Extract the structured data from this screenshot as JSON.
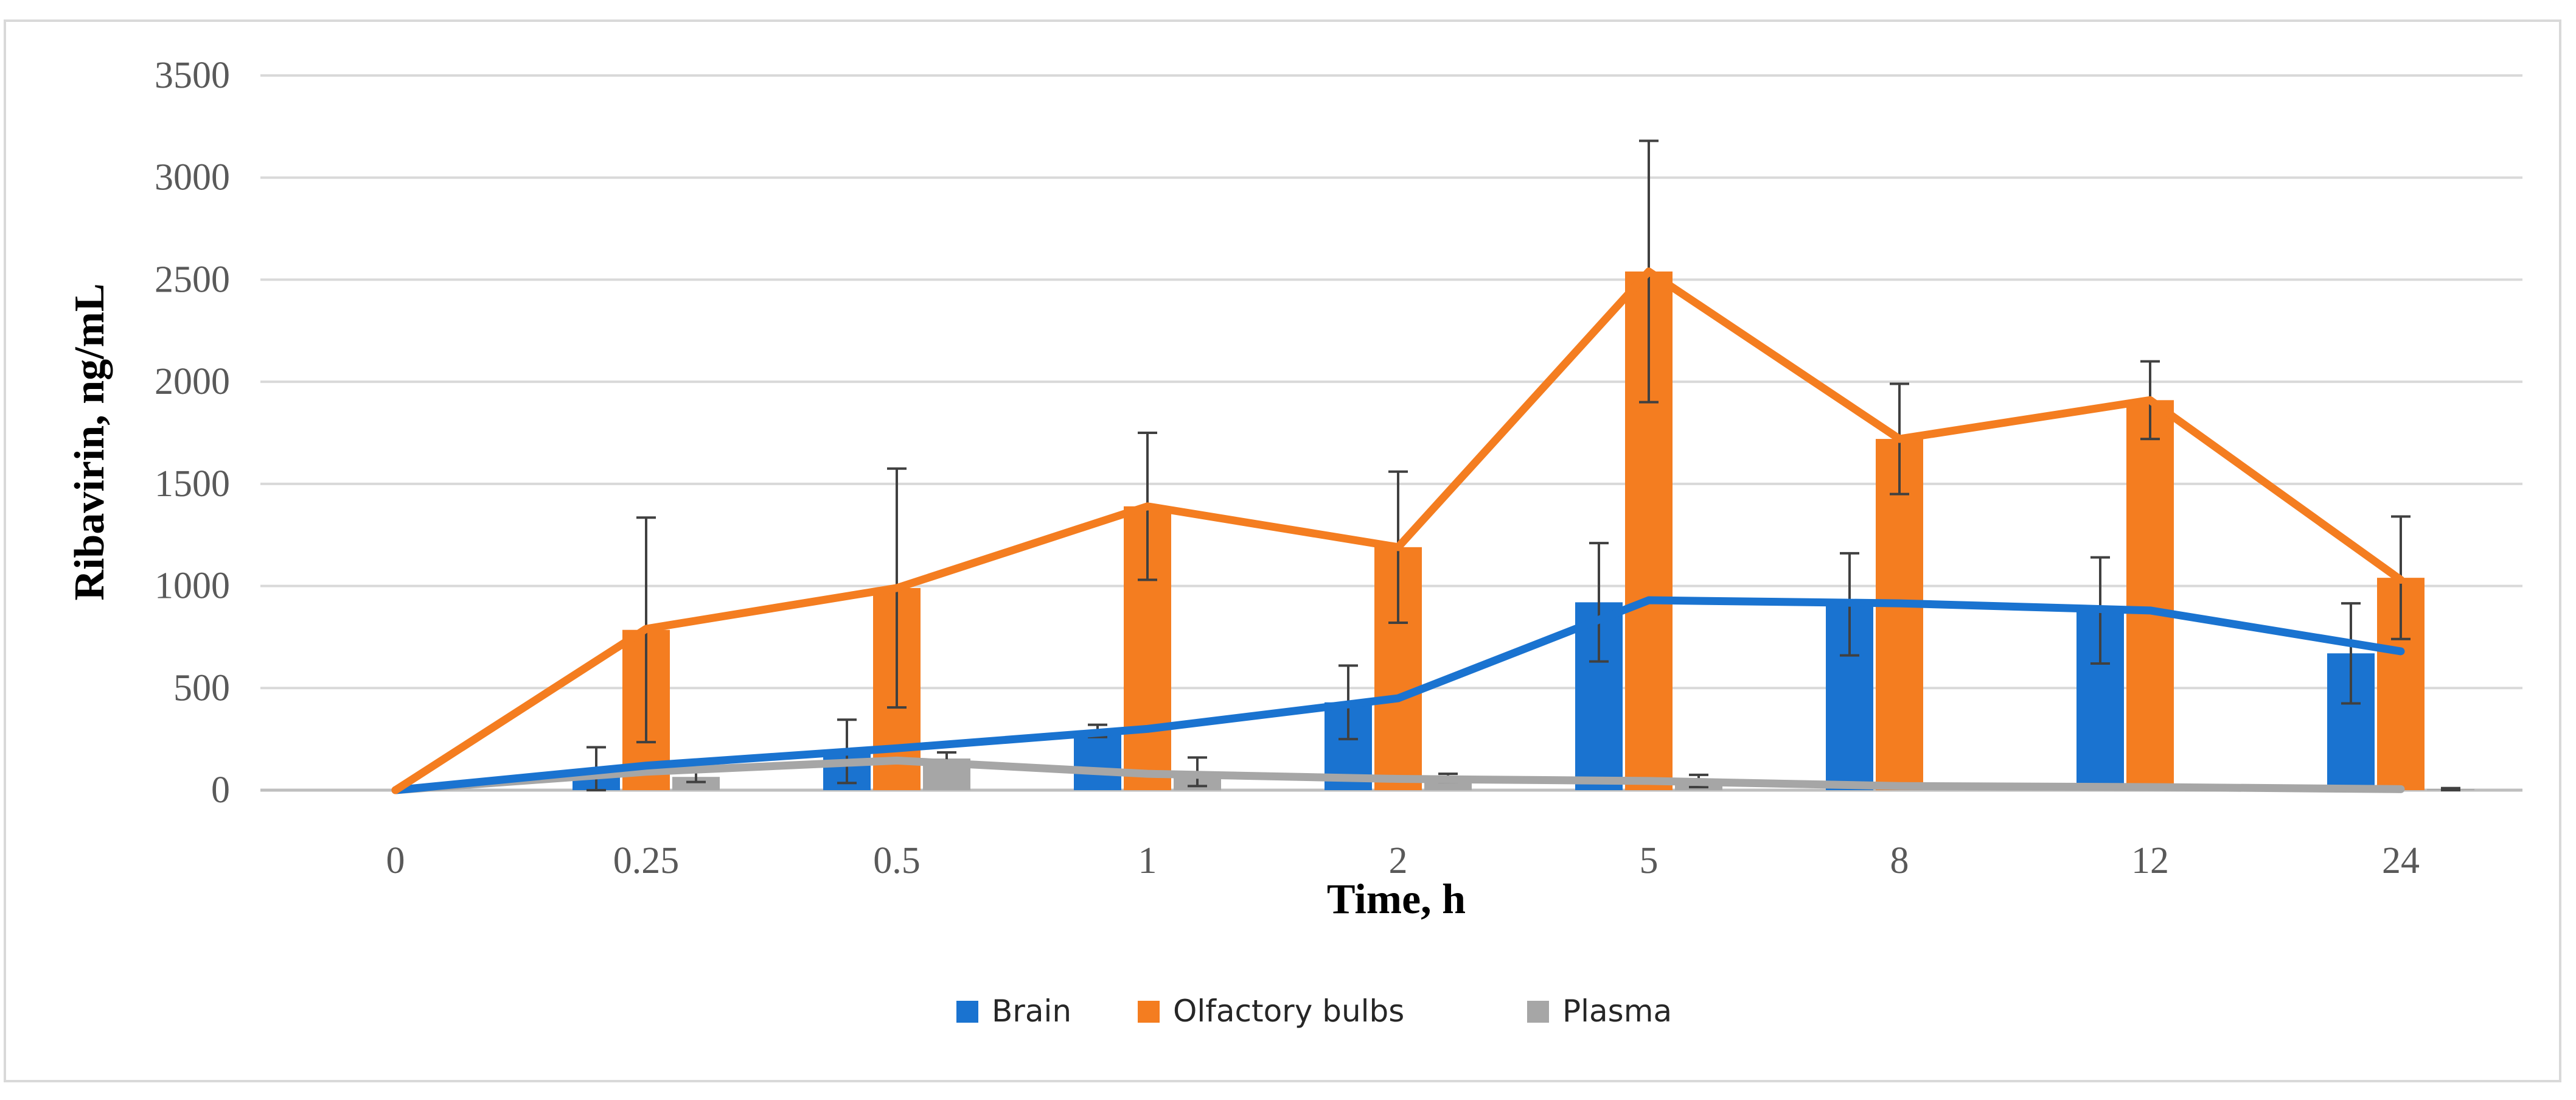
{
  "chart_data": {
    "type": "bar",
    "title": "",
    "xlabel": "Time, h",
    "ylabel": "Ribavirin, ng/mL",
    "ylim": [
      0,
      3500
    ],
    "yticks": [
      0,
      500,
      1000,
      1500,
      2000,
      2500,
      3000,
      3500
    ],
    "categories": [
      "0",
      "0.25",
      "0.5",
      "1",
      "2",
      "5",
      "8",
      "12",
      "24"
    ],
    "grid": true,
    "legend_position": "bottom-center",
    "series": [
      {
        "name": "Brain",
        "color": "#1a73d0",
        "values": [
          0,
          100,
          190,
          290,
          430,
          920,
          910,
          880,
          670
        ],
        "errors": [
          0,
          110,
          155,
          30,
          180,
          290,
          250,
          260,
          245
        ],
        "line_values": [
          0,
          120,
          205,
          300,
          450,
          930,
          915,
          880,
          680
        ]
      },
      {
        "name": "Olfactory bulbs",
        "color": "#f47d20",
        "values": [
          0,
          785,
          990,
          1390,
          1190,
          2540,
          1720,
          1910,
          1040
        ],
        "errors": [
          0,
          550,
          585,
          360,
          370,
          640,
          270,
          190,
          300
        ],
        "line_values": [
          0,
          790,
          990,
          1390,
          1190,
          2540,
          1720,
          1910,
          1030
        ]
      },
      {
        "name": "Plasma",
        "color": "#a6a6a6",
        "values": [
          0,
          65,
          155,
          90,
          60,
          45,
          20,
          15,
          5
        ],
        "errors": [
          0,
          25,
          30,
          70,
          20,
          30,
          10,
          10,
          5
        ],
        "line_values": [
          0,
          90,
          145,
          80,
          55,
          45,
          20,
          15,
          5
        ]
      }
    ]
  }
}
